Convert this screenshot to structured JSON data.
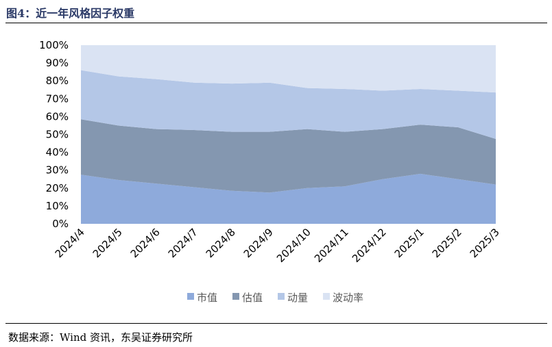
{
  "header": {
    "title": "图4：近一年风格因子权重"
  },
  "footer": {
    "source": "数据来源：Wind 资讯，东吴证券研究所"
  },
  "chart_data": {
    "type": "area",
    "stacked": true,
    "normalized": true,
    "title": "",
    "xlabel": "",
    "ylabel": "",
    "ylim": [
      0,
      100
    ],
    "y_unit": "%",
    "y_ticks": [
      "0%",
      "10%",
      "20%",
      "30%",
      "40%",
      "50%",
      "60%",
      "70%",
      "80%",
      "90%",
      "100%"
    ],
    "grid": false,
    "legend_position": "bottom",
    "categories": [
      "2024/4",
      "2024/5",
      "2024/6",
      "2024/7",
      "2024/8",
      "2024/9",
      "2024/10",
      "2024/11",
      "2024/12",
      "2025/1",
      "2025/2",
      "2025/3"
    ],
    "series": [
      {
        "name": "市值",
        "color": "#8eaadb",
        "values": [
          27.5,
          24.5,
          22.5,
          20.5,
          18.5,
          17.5,
          20,
          21,
          25,
          28,
          25,
          22
        ]
      },
      {
        "name": "估值",
        "color": "#8497b0",
        "values": [
          31,
          30.5,
          30.5,
          32,
          33,
          34,
          33,
          30.5,
          28,
          27.5,
          29,
          25.5
        ]
      },
      {
        "name": "动量",
        "color": "#b4c7e7",
        "values": [
          27.5,
          27.5,
          28,
          26.5,
          27,
          27.5,
          23,
          24,
          21.5,
          20,
          20.5,
          26
        ]
      },
      {
        "name": "波动率",
        "color": "#dae3f3",
        "values": [
          14,
          17.5,
          19,
          21,
          21.5,
          21,
          24,
          24.5,
          25.5,
          24.5,
          25.5,
          26.5
        ]
      }
    ]
  }
}
